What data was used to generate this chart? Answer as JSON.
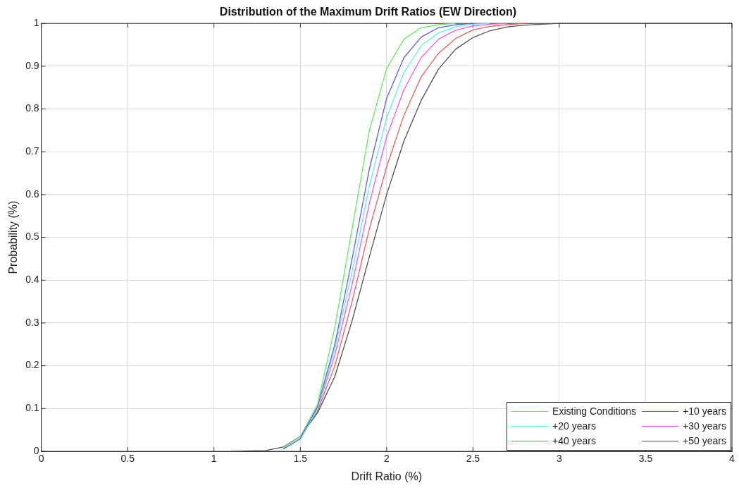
{
  "chart_data": {
    "type": "line",
    "title": "Distribution of the Maximum Drift Ratios (EW Direction)",
    "xlabel": "Drift Ratio (%)",
    "ylabel": "Probability (%)",
    "x": [
      1.1,
      1.2,
      1.3,
      1.4,
      1.5,
      1.6,
      1.7,
      1.8,
      1.9,
      2.0,
      2.1,
      2.2,
      2.3,
      2.4,
      2.5,
      2.6,
      2.7,
      2.8,
      2.9,
      3.0,
      3.1,
      3.2,
      3.3,
      3.4,
      3.5,
      3.6,
      3.7,
      3.8,
      3.9,
      4.0
    ],
    "series": [
      {
        "name": "Existing Conditions",
        "color": "#5cf05c",
        "values": [
          null,
          null,
          null,
          0.008,
          0.035,
          0.11,
          0.29,
          0.52,
          0.75,
          0.895,
          0.963,
          0.99,
          0.997,
          1,
          null,
          null,
          null,
          null,
          null,
          null,
          null,
          null,
          null,
          null,
          null,
          null,
          null,
          null,
          null,
          null
        ]
      },
      {
        "name": "+10 years",
        "color": "#5c5cf0",
        "values": [
          null,
          null,
          null,
          0.005,
          0.03,
          0.105,
          0.25,
          0.45,
          0.66,
          0.825,
          0.92,
          0.968,
          0.99,
          0.997,
          1,
          null,
          null,
          null,
          null,
          null,
          null,
          null,
          null,
          null,
          null,
          null,
          null,
          null,
          null,
          null
        ]
      },
      {
        "name": "+20 years",
        "color": "#5cf0f0",
        "values": [
          null,
          null,
          null,
          0.005,
          0.028,
          0.1,
          0.24,
          0.42,
          0.62,
          0.78,
          0.885,
          0.948,
          0.978,
          0.992,
          0.998,
          1,
          null,
          null,
          null,
          null,
          null,
          null,
          null,
          null,
          null,
          null,
          null,
          null,
          null,
          null
        ]
      },
      {
        "name": "+30 years",
        "color": "#f05cf0",
        "values": [
          null,
          null,
          null,
          0.008,
          0.035,
          0.1,
          0.225,
          0.39,
          0.58,
          0.735,
          0.845,
          0.92,
          0.963,
          0.984,
          0.994,
          0.998,
          1,
          null,
          null,
          null,
          null,
          null,
          null,
          null,
          null,
          null,
          null,
          null,
          null,
          null
        ]
      },
      {
        "name": "+40 years",
        "color": "#f05c5c",
        "values": [
          null,
          null,
          null,
          0.009,
          0.035,
          0.095,
          0.2,
          0.35,
          0.52,
          0.665,
          0.785,
          0.875,
          0.93,
          0.965,
          0.985,
          0.993,
          0.997,
          1,
          null,
          null,
          null,
          null,
          null,
          null,
          null,
          null,
          null,
          null,
          null,
          null
        ]
      },
      {
        "name": "+50 years",
        "color": "#505050",
        "values": [
          0,
          0.001,
          0.002,
          0.01,
          0.035,
          0.09,
          0.175,
          0.305,
          0.455,
          0.6,
          0.725,
          0.82,
          0.893,
          0.94,
          0.967,
          0.983,
          0.992,
          0.996,
          0.998,
          1,
          1,
          1,
          1,
          1,
          1,
          1,
          1,
          1,
          1,
          1
        ]
      }
    ],
    "xlim": [
      0,
      4
    ],
    "xticks": [
      0,
      0.5,
      1,
      1.5,
      2,
      2.5,
      3,
      3.5,
      4
    ],
    "ylim": [
      0,
      1
    ],
    "yticks": [
      0,
      0.1,
      0.2,
      0.3,
      0.4,
      0.5,
      0.6,
      0.7,
      0.8,
      0.9,
      1
    ],
    "grid": true,
    "legend": "bottom right",
    "marker": "none",
    "line_style": "solid"
  }
}
